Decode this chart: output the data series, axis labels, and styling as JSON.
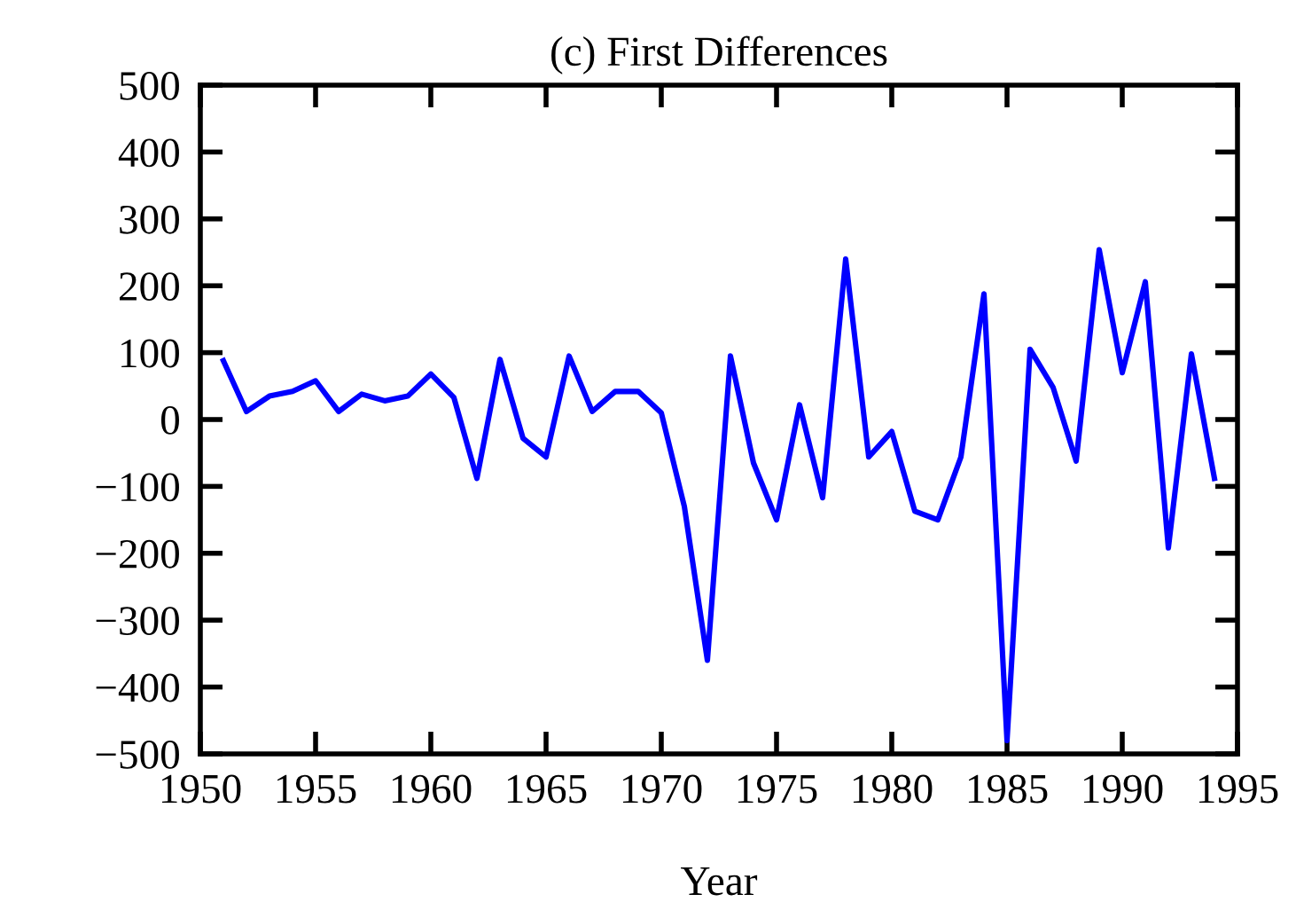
{
  "chart_data": {
    "type": "line",
    "title": "(c) First Differences",
    "xlabel": "Year",
    "x": [
      1951,
      1952,
      1953,
      1954,
      1955,
      1956,
      1957,
      1958,
      1959,
      1960,
      1961,
      1962,
      1963,
      1964,
      1965,
      1966,
      1967,
      1968,
      1969,
      1970,
      1971,
      1972,
      1973,
      1974,
      1975,
      1976,
      1977,
      1978,
      1979,
      1980,
      1981,
      1982,
      1983,
      1984,
      1985,
      1986,
      1987,
      1988,
      1989,
      1990,
      1991,
      1992,
      1993,
      1994
    ],
    "series": [
      {
        "color": "#0000ff",
        "values": [
          88,
          12,
          35,
          42,
          58,
          12,
          38,
          28,
          35,
          68,
          33,
          -88,
          90,
          -28,
          -56,
          95,
          12,
          42,
          42,
          10,
          -130,
          -360,
          95,
          -65,
          -150,
          22,
          -117,
          240,
          -56,
          -18,
          -137,
          -150,
          -56,
          188,
          -480,
          105,
          48,
          -62,
          254,
          70,
          206,
          -192,
          98,
          -88
        ]
      }
    ],
    "xlim": [
      1950,
      1995
    ],
    "xticks": [
      1950,
      1955,
      1960,
      1965,
      1970,
      1975,
      1980,
      1985,
      1990,
      1995
    ],
    "ylim": [
      -500,
      500
    ],
    "yticks": [
      {
        "value": -500,
        "label": "−500"
      },
      {
        "value": -400,
        "label": "−400"
      },
      {
        "value": -300,
        "label": "−300"
      },
      {
        "value": -200,
        "label": "−200"
      },
      {
        "value": -100,
        "label": "−100"
      },
      0,
      100,
      200,
      300,
      400,
      500
    ],
    "grid": false,
    "marker": "none",
    "line_style": "solid"
  }
}
